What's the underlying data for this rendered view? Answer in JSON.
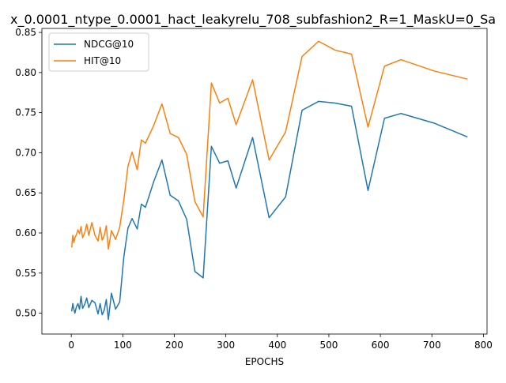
{
  "chart_data": {
    "type": "line",
    "title": "x_0.0001_ntype_0.0001_hact_leakyrelu_708_subfashion2_R=1_MaskU=0_Sa",
    "xlabel": "EPOCHS",
    "ylabel": "",
    "xlim": [
      -57,
      807
    ],
    "ylim": [
      0.474,
      0.855
    ],
    "xticks": [
      0,
      100,
      200,
      300,
      400,
      500,
      600,
      700,
      800
    ],
    "yticks": [
      0.5,
      0.55,
      0.6,
      0.65,
      0.7,
      0.75,
      0.8,
      0.85
    ],
    "grid": false,
    "legend_position": "upper left",
    "series": [
      {
        "name": "NDCG@10",
        "color": "#1f77b4",
        "x": [
          1,
          3,
          5,
          7,
          10,
          13,
          16,
          19,
          22,
          26,
          30,
          34,
          40,
          46,
          52,
          56,
          60,
          64,
          68,
          72,
          78,
          86,
          94,
          102,
          110,
          118,
          128,
          136,
          144,
          160,
          176,
          192,
          208,
          224,
          240,
          256,
          272,
          288,
          304,
          320,
          352,
          384,
          416,
          448,
          480,
          512,
          544,
          576,
          608,
          640,
          704,
          768
        ],
        "y": [
          0.503,
          0.512,
          0.505,
          0.5,
          0.508,
          0.512,
          0.505,
          0.521,
          0.506,
          0.511,
          0.519,
          0.507,
          0.516,
          0.513,
          0.499,
          0.512,
          0.498,
          0.504,
          0.517,
          0.492,
          0.525,
          0.505,
          0.514,
          0.57,
          0.606,
          0.618,
          0.605,
          0.636,
          0.632,
          0.664,
          0.691,
          0.647,
          0.64,
          0.617,
          0.552,
          0.544,
          0.708,
          0.687,
          0.69,
          0.656,
          0.719,
          0.619,
          0.645,
          0.753,
          0.764,
          0.762,
          0.758,
          0.653,
          0.743,
          0.749,
          0.737,
          0.72
        ]
      },
      {
        "name": "HIT@10",
        "color": "#ff7f0e",
        "x": [
          1,
          3,
          5,
          7,
          10,
          13,
          16,
          19,
          22,
          26,
          30,
          34,
          40,
          46,
          52,
          56,
          60,
          64,
          68,
          72,
          78,
          86,
          94,
          102,
          110,
          118,
          128,
          136,
          144,
          160,
          176,
          192,
          208,
          224,
          240,
          256,
          272,
          288,
          304,
          320,
          352,
          384,
          416,
          448,
          480,
          512,
          544,
          576,
          608,
          640,
          704,
          768
        ],
        "y": [
          0.583,
          0.597,
          0.588,
          0.594,
          0.598,
          0.604,
          0.599,
          0.608,
          0.594,
          0.6,
          0.611,
          0.597,
          0.613,
          0.597,
          0.59,
          0.607,
          0.591,
          0.597,
          0.609,
          0.58,
          0.603,
          0.592,
          0.607,
          0.641,
          0.683,
          0.701,
          0.679,
          0.716,
          0.712,
          0.734,
          0.761,
          0.724,
          0.719,
          0.698,
          0.639,
          0.62,
          0.787,
          0.762,
          0.768,
          0.735,
          0.791,
          0.691,
          0.726,
          0.82,
          0.839,
          0.828,
          0.823,
          0.732,
          0.808,
          0.816,
          0.802,
          0.792
        ]
      }
    ]
  }
}
